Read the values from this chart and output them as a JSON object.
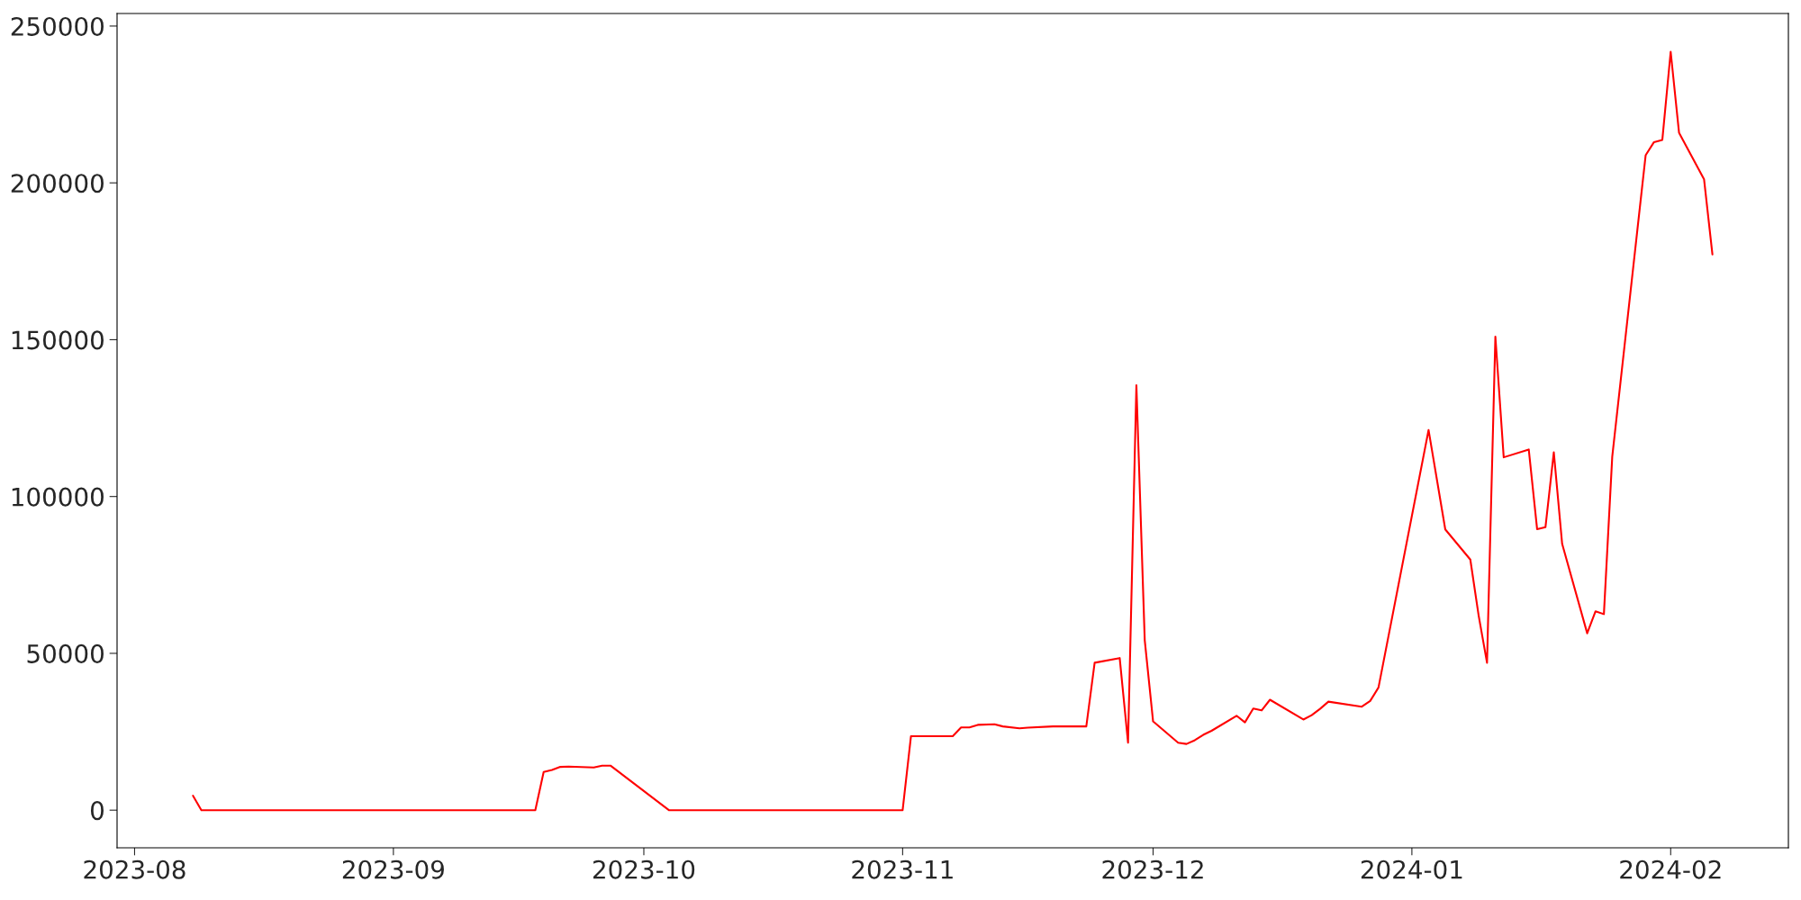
{
  "chart_data": {
    "type": "line",
    "x": [
      "2023-08-08",
      "2023-08-09",
      "2023-09-18",
      "2023-09-19",
      "2023-09-20",
      "2023-09-21",
      "2023-09-22",
      "2023-09-25",
      "2023-09-26",
      "2023-09-27",
      "2023-10-04",
      "2023-11-01",
      "2023-11-02",
      "2023-11-07",
      "2023-11-08",
      "2023-11-09",
      "2023-11-10",
      "2023-11-12",
      "2023-11-13",
      "2023-11-15",
      "2023-11-16",
      "2023-11-19",
      "2023-11-23",
      "2023-11-24",
      "2023-11-27",
      "2023-11-28",
      "2023-11-29",
      "2023-11-30",
      "2023-12-01",
      "2023-12-04",
      "2023-12-05",
      "2023-12-06",
      "2023-12-07",
      "2023-12-08",
      "2023-12-11",
      "2023-12-12",
      "2023-12-13",
      "2023-12-14",
      "2023-12-15",
      "2023-12-19",
      "2023-12-20",
      "2023-12-21",
      "2023-12-22",
      "2023-12-26",
      "2023-12-27",
      "2023-12-28",
      "2024-01-03",
      "2024-01-05",
      "2024-01-08",
      "2024-01-09",
      "2024-01-10",
      "2024-01-11",
      "2024-01-12",
      "2024-01-15",
      "2024-01-16",
      "2024-01-17",
      "2024-01-18",
      "2024-01-19",
      "2024-01-22",
      "2024-01-23",
      "2024-01-24",
      "2024-01-25",
      "2024-01-29",
      "2024-01-30",
      "2024-01-31",
      "2024-02-01",
      "2024-02-02",
      "2024-02-05",
      "2024-02-06"
    ],
    "series": [
      {
        "color": "#ff0000",
        "values": [
          4600,
          0,
          0,
          12200,
          12800,
          13800,
          13900,
          13600,
          14200,
          14200,
          0,
          0,
          23600,
          23600,
          26400,
          26400,
          27200,
          27400,
          26700,
          26100,
          26300,
          26700,
          26700,
          47000,
          48500,
          21500,
          135500,
          54200,
          28300,
          21500,
          21100,
          22300,
          24000,
          25300,
          30100,
          28000,
          32400,
          31800,
          35200,
          28900,
          30300,
          32300,
          34600,
          33000,
          34800,
          39100,
          121200,
          89500,
          79900,
          62000,
          47000,
          151000,
          112500,
          115000,
          89600,
          90200,
          114100,
          84900,
          56400,
          63400,
          62500,
          112700,
          208800,
          213000,
          213700,
          241800,
          216000,
          201100,
          177200
        ]
      }
    ],
    "xlim": [
      "2023-07-29T21:36",
      "2024-02-15T02:24"
    ],
    "xticks": [
      {
        "value": "2023-08-01",
        "label": "2023-08"
      },
      {
        "value": "2023-09-01",
        "label": "2023-09"
      },
      {
        "value": "2023-10-01",
        "label": "2023-10"
      },
      {
        "value": "2023-11-01",
        "label": "2023-11"
      },
      {
        "value": "2023-12-01",
        "label": "2023-12"
      },
      {
        "value": "2024-01-01",
        "label": "2024-01"
      },
      {
        "value": "2024-02-01",
        "label": "2024-02"
      }
    ],
    "ylim": [
      -12000,
      254000
    ],
    "yticks": [
      0,
      50000,
      100000,
      150000,
      200000,
      250000
    ],
    "grid": false,
    "marker": "none",
    "line_style": "solid"
  }
}
